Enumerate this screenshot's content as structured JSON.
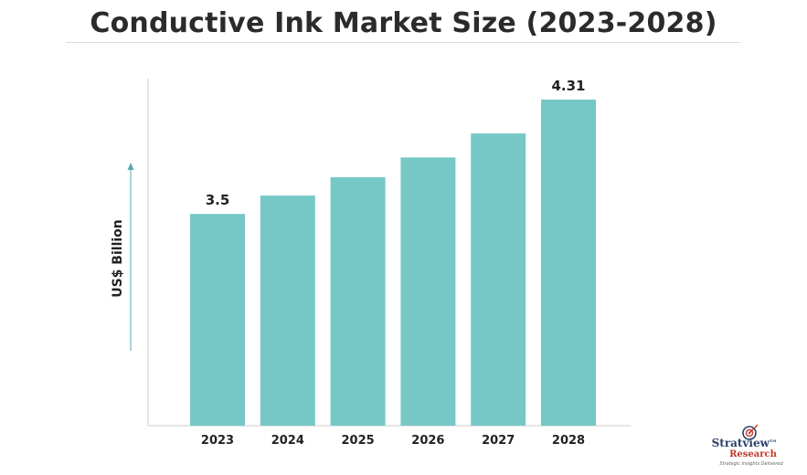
{
  "chart_data": {
    "type": "bar",
    "title": "Conductive Ink Market Size (2023-2028)",
    "ylabel": "US$ Billion",
    "xlabel": "",
    "categories": [
      "2023",
      "2024",
      "2025",
      "2026",
      "2027",
      "2028"
    ],
    "values": [
      3.5,
      3.63,
      3.76,
      3.9,
      4.07,
      4.31
    ],
    "data_labels": {
      "2023": "3.5",
      "2028": "4.31"
    },
    "ylim": [
      2.0,
      4.4
    ],
    "bar_color": "#76c8c7",
    "grid": false,
    "legend": "none"
  },
  "logo": {
    "name": "Stratview",
    "trademark": "TM",
    "sub": "Research",
    "tagline": "Strategic Insights Delivered"
  },
  "colors": {
    "title": "#2b2b2b",
    "axis": "#cccccc",
    "bar": "#76c8c7",
    "logo_primary": "#2a3f6b",
    "logo_accent": "#c0392b"
  }
}
